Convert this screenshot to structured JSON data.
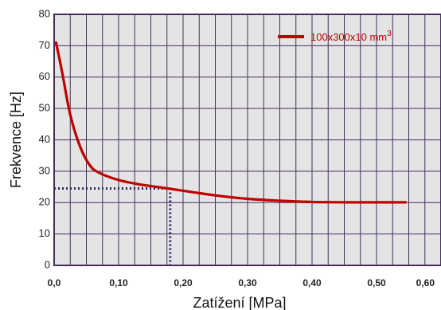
{
  "chart_data": {
    "type": "line",
    "title": "",
    "xlabel": "Zatížení [MPa]",
    "ylabel": "Frekvence [Hz]",
    "xlim": [
      0,
      0.6
    ],
    "ylim": [
      0,
      80
    ],
    "x_ticks": [
      0,
      0.1,
      0.2,
      0.3,
      0.4,
      0.5,
      0.6
    ],
    "x_tick_labels": [
      "0,0",
      "0,10",
      "0,20",
      "0,30",
      "0,40",
      "0,50",
      "0,60"
    ],
    "y_ticks": [
      0,
      10,
      20,
      30,
      40,
      50,
      60,
      70,
      80
    ],
    "y_tick_labels": [
      "0",
      "10",
      "20",
      "30",
      "40",
      "50",
      "60",
      "70",
      "80"
    ],
    "x_grid_step": 0.025,
    "y_grid_step": 10,
    "grid": true,
    "plot_background": "#e4e4e4",
    "grid_color": "#432f5f",
    "legend_position": "top-right",
    "legend": {
      "prefix": "100x300x10 mm",
      "superscript": "3"
    },
    "series": [
      {
        "name": "100x300x10 mm3",
        "color": "#c00000",
        "x": [
          0.003,
          0.012,
          0.025,
          0.04,
          0.055,
          0.07,
          0.1,
          0.13,
          0.16,
          0.2,
          0.25,
          0.3,
          0.35,
          0.4,
          0.45,
          0.5,
          0.545
        ],
        "y": [
          71,
          62,
          48,
          38,
          32,
          29.5,
          27.2,
          25.9,
          25,
          23.8,
          22.3,
          21.2,
          20.6,
          20.2,
          20.1,
          20.1,
          20.1
        ]
      }
    ],
    "reference_lines": {
      "color": "#2e1f66",
      "horizontal_y": 24.5,
      "vertical_x": 0.18,
      "horizontal_from_x": 0,
      "vertical_from_y": 0
    }
  }
}
